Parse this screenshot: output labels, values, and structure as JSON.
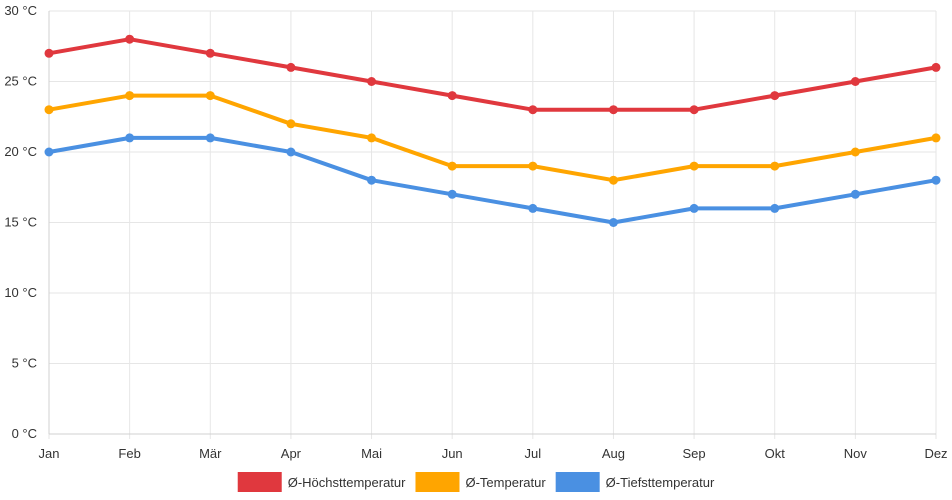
{
  "chart_data": {
    "type": "line",
    "categories": [
      "Jan",
      "Feb",
      "Mär",
      "Apr",
      "Mai",
      "Jun",
      "Jul",
      "Aug",
      "Sep",
      "Okt",
      "Nov",
      "Dez"
    ],
    "y_unit": "°C",
    "ylim": [
      0,
      30
    ],
    "y_ticks": [
      0,
      5,
      10,
      15,
      20,
      25,
      30
    ],
    "grid": true,
    "legend_position": "bottom-center",
    "series": [
      {
        "name": "Ø-Höchsttemperatur",
        "color": "#e0383e",
        "values": [
          27,
          28,
          27,
          26,
          25,
          24,
          23,
          23,
          23,
          24,
          25,
          26
        ]
      },
      {
        "name": "Ø-Temperatur",
        "color": "#ffa500",
        "values": [
          23,
          24,
          24,
          22,
          21,
          19,
          19,
          18,
          19,
          19,
          20,
          21
        ]
      },
      {
        "name": "Ø-Tiefsttemperatur",
        "color": "#4a90e2",
        "values": [
          20,
          21,
          21,
          20,
          18,
          17,
          16,
          15,
          16,
          16,
          17,
          18
        ]
      }
    ]
  }
}
